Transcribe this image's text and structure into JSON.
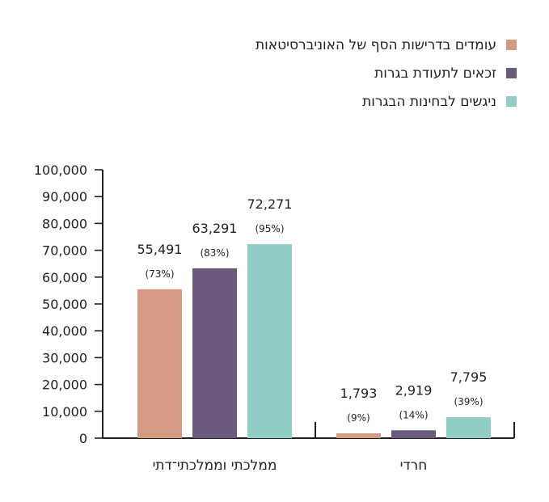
{
  "chart_data": {
    "type": "bar",
    "categories": [
      "ממלכתי וממלכתי־דתי",
      "חרדי"
    ],
    "series": [
      {
        "name": "עומדים בדרישות הסף של האוניברסיטאות",
        "color": "#d49a82",
        "values": [
          55491,
          1793
        ],
        "labels": [
          "55,491",
          "1,793"
        ],
        "percents": [
          "(73%)",
          "(9%)"
        ]
      },
      {
        "name": "זכאים לתעודת בגרות",
        "color": "#6b5a7b",
        "values": [
          63291,
          2919
        ],
        "labels": [
          "63,291",
          "2,919"
        ],
        "percents": [
          "(83%)",
          "(14%)"
        ]
      },
      {
        "name": "ניגשים לבחינות הבגרות",
        "color": "#92ccc7",
        "values": [
          72271,
          7795
        ],
        "labels": [
          "72,271",
          "7,795"
        ],
        "percents": [
          "(95%)",
          "(39%)"
        ]
      }
    ],
    "ylim": [
      0,
      100000
    ],
    "yticks": [
      0,
      10000,
      20000,
      30000,
      40000,
      50000,
      60000,
      70000,
      80000,
      90000,
      100000
    ],
    "ytick_labels": [
      "0",
      "10,000",
      "20,000",
      "30,000",
      "40,000",
      "50,000",
      "60,000",
      "70,000",
      "80,000",
      "90,000",
      "100,000"
    ],
    "title": "",
    "xlabel": "",
    "ylabel": "",
    "grid": false,
    "legend_position": "top-right",
    "axis_color": "#231f20"
  }
}
